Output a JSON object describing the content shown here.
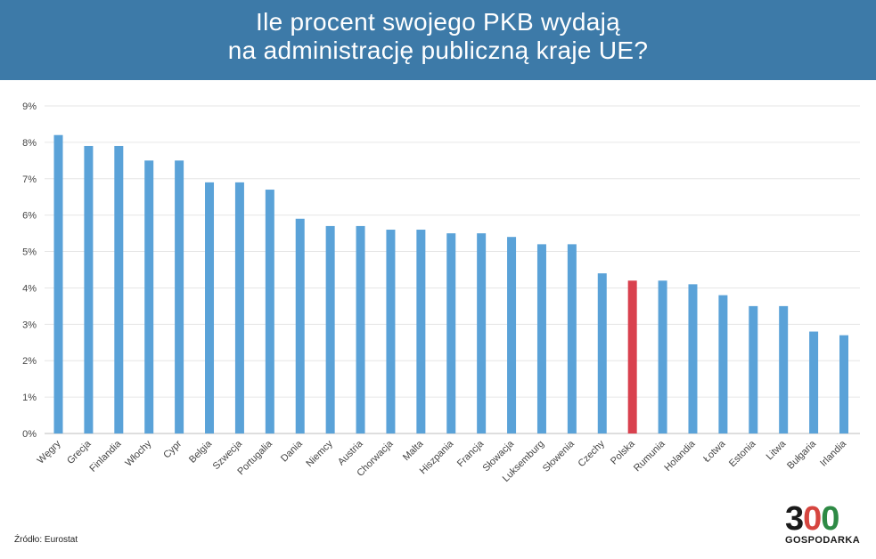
{
  "header": {
    "title_line1": "Ile procent swojego PKB wydają",
    "title_line2": "na administrację publiczną kraje UE?"
  },
  "source": "Źródło: Eurostat",
  "logo": {
    "digit_3": "3",
    "digit_0a": "0",
    "digit_0b": "0",
    "text": "GOSPODARKA"
  },
  "colors": {
    "header_bg": "#3d7aa8",
    "bar": "#5aa2d8",
    "highlight_bar": "#d9414e",
    "grid": "#e6e6e6"
  },
  "chart_data": {
    "type": "bar",
    "title": "Ile procent swojego PKB wydają na administrację publiczną kraje UE?",
    "xlabel": "",
    "ylabel": "",
    "ylim": [
      0,
      9
    ],
    "yticks": [
      "0%",
      "1%",
      "2%",
      "3%",
      "4%",
      "5%",
      "6%",
      "7%",
      "8%",
      "9%"
    ],
    "grid": true,
    "highlight": "Polska",
    "categories": [
      "Węgry",
      "Grecja",
      "Finlandia",
      "Włochy",
      "Cypr",
      "Belgia",
      "Szwecja",
      "Portugalia",
      "Dania",
      "Niemcy",
      "Austria",
      "Chorwacja",
      "Malta",
      "Hiszpania",
      "Francja",
      "Słowacja",
      "Luksemburg",
      "Słowenia",
      "Czechy",
      "Polska",
      "Rumunia",
      "Holandia",
      "Łotwa",
      "Estonia",
      "Litwa",
      "Bułgaria",
      "Irlandia"
    ],
    "values": [
      8.2,
      7.9,
      7.9,
      7.5,
      7.5,
      6.9,
      6.9,
      6.7,
      5.9,
      5.7,
      5.7,
      5.6,
      5.6,
      5.5,
      5.5,
      5.4,
      5.2,
      5.2,
      4.4,
      4.2,
      4.2,
      4.1,
      3.8,
      3.5,
      3.5,
      2.8,
      2.7
    ]
  }
}
